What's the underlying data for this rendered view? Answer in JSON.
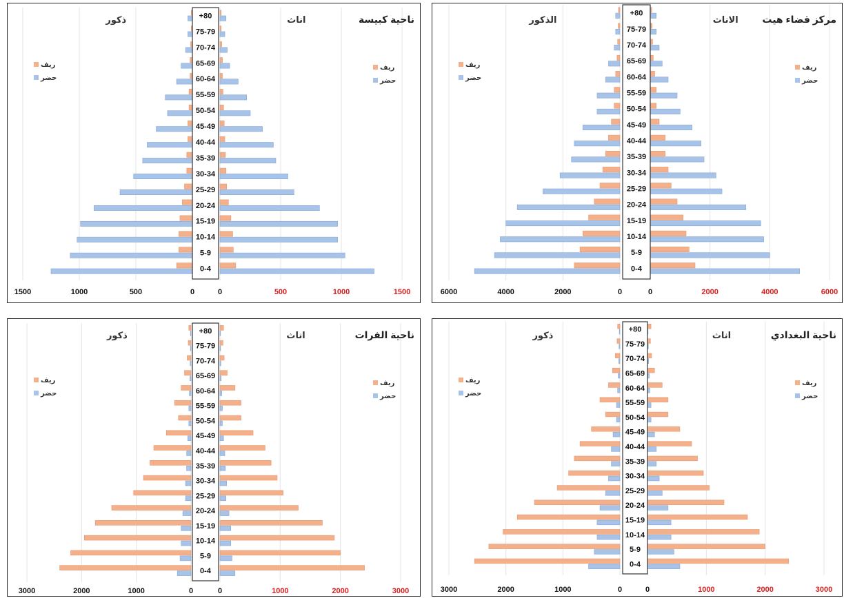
{
  "chart_data": [
    {
      "type": "bar",
      "title": "ناحية كبيسة",
      "female_label": "اناث",
      "male_label": "ذكور",
      "legend": {
        "rural": "ريف",
        "urban": "حضر"
      },
      "age_groups": [
        "0-4",
        "5-9",
        "10-14",
        "15-19",
        "20-24",
        "25-29",
        "30-34",
        "35-39",
        "40-44",
        "45-49",
        "50-54",
        "55-59",
        "60-64",
        "65-69",
        "70-74",
        "75-79",
        "+80"
      ],
      "xlim_left": [
        0,
        1500
      ],
      "xlim_right": [
        0,
        1500
      ],
      "left_ticks": [
        "1500",
        "1000",
        "500",
        "0"
      ],
      "right_ticks": [
        "0",
        "500",
        "1000",
        "1500"
      ],
      "series": [
        {
          "name": "ريف",
          "male": [
            140,
            120,
            120,
            110,
            90,
            70,
            50,
            50,
            40,
            40,
            30,
            30,
            20,
            20,
            15,
            10,
            10
          ],
          "female": [
            130,
            110,
            105,
            90,
            70,
            55,
            50,
            45,
            40,
            35,
            30,
            25,
            20,
            20,
            15,
            10,
            10
          ]
        },
        {
          "name": "حضر",
          "male": [
            1250,
            1080,
            1020,
            990,
            870,
            640,
            520,
            440,
            400,
            320,
            220,
            240,
            140,
            100,
            60,
            40,
            40
          ],
          "female": [
            1270,
            1030,
            970,
            970,
            820,
            610,
            560,
            460,
            440,
            350,
            250,
            220,
            150,
            80,
            60,
            40,
            50
          ]
        }
      ]
    },
    {
      "type": "bar",
      "title": "مركز قضاء هيت",
      "female_label": "الاناث",
      "male_label": "الذكور",
      "legend": {
        "rural": "ريف",
        "urban": "حضر"
      },
      "age_groups": [
        "0-4",
        "5-9",
        "10-14",
        "15-19",
        "20-24",
        "25-29",
        "30-34",
        "35-39",
        "40-44",
        "45-49",
        "50-54",
        "55-59",
        "60-64",
        "65-69",
        "70-74",
        "75-79",
        "+80"
      ],
      "xlim_left": [
        0,
        6000
      ],
      "xlim_right": [
        0,
        6000
      ],
      "left_ticks": [
        "6000",
        "4000",
        "2000",
        "0"
      ],
      "right_ticks": [
        "0",
        "2000",
        "4000",
        "6000"
      ],
      "series": [
        {
          "name": "ريف",
          "male": [
            1600,
            1400,
            1300,
            1100,
            900,
            700,
            600,
            500,
            400,
            300,
            200,
            200,
            150,
            100,
            80,
            60,
            50
          ],
          "female": [
            1500,
            1300,
            1200,
            1100,
            900,
            700,
            600,
            500,
            500,
            300,
            200,
            200,
            150,
            100,
            80,
            60,
            50
          ]
        },
        {
          "name": "حضر",
          "male": [
            5100,
            4400,
            4200,
            4000,
            3600,
            2700,
            2100,
            1700,
            1600,
            1300,
            800,
            800,
            500,
            400,
            200,
            150,
            150
          ],
          "female": [
            5000,
            4000,
            3800,
            3700,
            3200,
            2400,
            2200,
            1800,
            1700,
            1400,
            1000,
            900,
            600,
            400,
            300,
            200,
            200
          ]
        }
      ]
    },
    {
      "type": "bar",
      "title": "ناحية الفرات",
      "female_label": "اناث",
      "male_label": "ذكور",
      "legend": {
        "rural": "ريف",
        "urban": "حضر"
      },
      "age_groups": [
        "0-4",
        "5-9",
        "10-14",
        "15-19",
        "20-24",
        "25-29",
        "30-34",
        "35-39",
        "40-44",
        "45-49",
        "50-54",
        "55-59",
        "60-64",
        "65-69",
        "70-74",
        "75-79",
        "+80"
      ],
      "xlim_left": [
        0,
        3000
      ],
      "xlim_right": [
        0,
        3000
      ],
      "left_ticks": [
        "3000",
        "2000",
        "1000",
        "0"
      ],
      "right_ticks": [
        "0",
        "1000",
        "2000",
        "3000"
      ],
      "series": [
        {
          "name": "ريف",
          "male": [
            2400,
            2200,
            1950,
            1750,
            1450,
            1050,
            870,
            750,
            680,
            450,
            230,
            300,
            180,
            120,
            70,
            50,
            40
          ],
          "female": [
            2400,
            2000,
            1900,
            1700,
            1300,
            1050,
            950,
            850,
            750,
            550,
            350,
            350,
            250,
            120,
            70,
            50,
            60
          ]
        },
        {
          "name": "حضر",
          "male": [
            250,
            200,
            180,
            180,
            150,
            100,
            100,
            80,
            80,
            60,
            40,
            40,
            30,
            20,
            15,
            10,
            10
          ],
          "female": [
            250,
            200,
            180,
            180,
            150,
            100,
            110,
            90,
            80,
            60,
            40,
            40,
            30,
            20,
            15,
            10,
            10
          ]
        }
      ]
    },
    {
      "type": "bar",
      "title": "ناحية البغدادي",
      "female_label": "اناث",
      "male_label": "ذكور",
      "legend": {
        "rural": "ريف",
        "urban": "حضر"
      },
      "age_groups": [
        "0-4",
        "5-9",
        "10-14",
        "15-19",
        "20-24",
        "25-29",
        "30-34",
        "35-39",
        "40-44",
        "45-49",
        "50-54",
        "55-59",
        "60-64",
        "65-69",
        "70-74",
        "75-79",
        "+80"
      ],
      "xlim_left": [
        0,
        3000
      ],
      "xlim_right": [
        0,
        3000
      ],
      "left_ticks": [
        "3000",
        "2000",
        "1000",
        "0"
      ],
      "right_ticks": [
        "0",
        "1000",
        "2000",
        "3000"
      ],
      "series": [
        {
          "name": "ريف",
          "male": [
            2550,
            2300,
            2050,
            1800,
            1500,
            1100,
            900,
            800,
            700,
            500,
            250,
            350,
            200,
            130,
            80,
            50,
            40
          ],
          "female": [
            2400,
            2000,
            1900,
            1700,
            1300,
            1050,
            950,
            850,
            750,
            550,
            350,
            350,
            250,
            120,
            70,
            50,
            60
          ]
        },
        {
          "name": "حضر",
          "male": [
            550,
            450,
            400,
            400,
            350,
            250,
            200,
            150,
            150,
            120,
            60,
            60,
            40,
            30,
            20,
            15,
            10
          ],
          "female": [
            550,
            450,
            400,
            400,
            350,
            250,
            200,
            150,
            150,
            120,
            60,
            60,
            40,
            30,
            20,
            15,
            10
          ]
        }
      ]
    }
  ]
}
